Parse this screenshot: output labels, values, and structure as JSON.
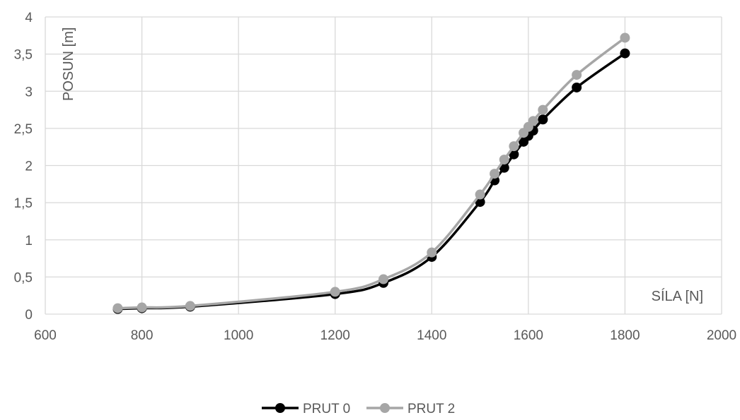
{
  "chart_data": {
    "type": "line",
    "title": "",
    "xlabel": "SÍLA [N]",
    "ylabel": "POSUN [m]",
    "xlim": [
      600,
      2000
    ],
    "ylim": [
      0,
      4
    ],
    "x_ticks": [
      600,
      800,
      1000,
      1200,
      1400,
      1600,
      1800,
      2000
    ],
    "x_tick_labels": [
      "600",
      "800",
      "1000",
      "1200",
      "1400",
      "1600",
      "1800",
      "2000"
    ],
    "y_ticks": [
      0,
      0.5,
      1,
      1.5,
      2,
      2.5,
      3,
      3.5,
      4
    ],
    "y_tick_labels": [
      "0",
      "0,5",
      "1",
      "1,5",
      "2",
      "2,5",
      "3",
      "3,5",
      "4"
    ],
    "grid": true,
    "legend_position": "bottom",
    "smooth": true,
    "series": [
      {
        "name": "PRUT 0",
        "color": "#000000",
        "x": [
          750,
          800,
          900,
          1200,
          1300,
          1400,
          1500,
          1530,
          1550,
          1570,
          1590,
          1600,
          1610,
          1630,
          1700,
          1800
        ],
        "y": [
          0.07,
          0.08,
          0.1,
          0.27,
          0.42,
          0.77,
          1.51,
          1.8,
          1.97,
          2.15,
          2.32,
          2.4,
          2.47,
          2.62,
          3.05,
          3.51
        ]
      },
      {
        "name": "PRUT 2",
        "color": "#a6a6a6",
        "x": [
          750,
          800,
          900,
          1200,
          1300,
          1400,
          1500,
          1530,
          1550,
          1570,
          1590,
          1600,
          1610,
          1630,
          1700,
          1800
        ],
        "y": [
          0.08,
          0.09,
          0.11,
          0.3,
          0.47,
          0.83,
          1.61,
          1.89,
          2.08,
          2.26,
          2.44,
          2.52,
          2.6,
          2.75,
          3.22,
          3.72
        ]
      }
    ]
  }
}
